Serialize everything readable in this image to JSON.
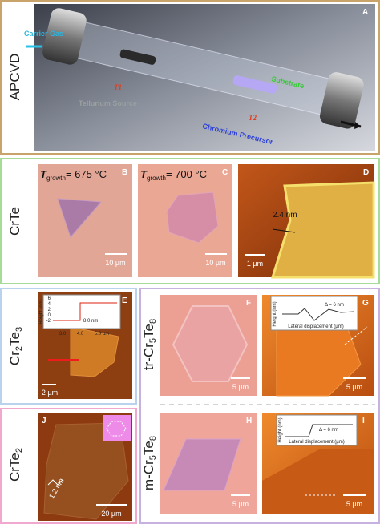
{
  "panel_a": {
    "side_label": "APCVD",
    "letter": "A",
    "labels": {
      "carrier_gas": "Carrier Gas",
      "tellurium_source": "Tellurium Source",
      "t1": "T1",
      "substrate": "Substrate",
      "t2": "T2",
      "chromium_precursor": "Chromium Precursor"
    }
  },
  "crte": {
    "side_label": "CrTe",
    "b": {
      "letter": "B",
      "temp": [
        "T",
        "growth",
        "= 675 °C"
      ],
      "scale": "10 µm"
    },
    "c": {
      "letter": "C",
      "temp": [
        "T",
        "growth",
        "= 700 °C"
      ],
      "scale": "10 µm"
    },
    "d": {
      "letter": "D",
      "step": "2.4 nm",
      "scale": "1 µm"
    }
  },
  "cr2te3": {
    "side_label": [
      "Cr",
      "2",
      "Te",
      "3"
    ],
    "e": {
      "letter": "E",
      "scale": "2 µm",
      "inset": {
        "yticks": [
          "6",
          "4",
          "2",
          "0",
          "-2"
        ],
        "ylabel": "Height (nm)",
        "xticks": [
          "3.0",
          "4.0",
          "5.0 µm"
        ],
        "step": "8.0 nm"
      }
    }
  },
  "cr5te8": {
    "tr_label": [
      "tr-Cr",
      "5",
      "Te",
      "8"
    ],
    "m_label": [
      "m-Cr",
      "5",
      "Te",
      "8"
    ],
    "f": {
      "letter": "F",
      "scale": "5 µm"
    },
    "g": {
      "letter": "G",
      "scale": "5 µm",
      "inset": {
        "ylabel": "Height (nm)",
        "xlabel": "Lateral displacement (µm)",
        "delta": "Δ = 6 nm"
      }
    },
    "h": {
      "letter": "H",
      "scale": "5 µm"
    },
    "i": {
      "letter": "I",
      "scale": "5 µm",
      "inset": {
        "ylabel": "Height (nm)",
        "xlabel": "Lateral displacement (µm)",
        "delta": "Δ = 6 nm"
      }
    }
  },
  "crte2": {
    "side_label": [
      "CrTe",
      "2"
    ],
    "j": {
      "letter": "J",
      "step": "1.2 nm",
      "scale": "20 µm"
    }
  }
}
